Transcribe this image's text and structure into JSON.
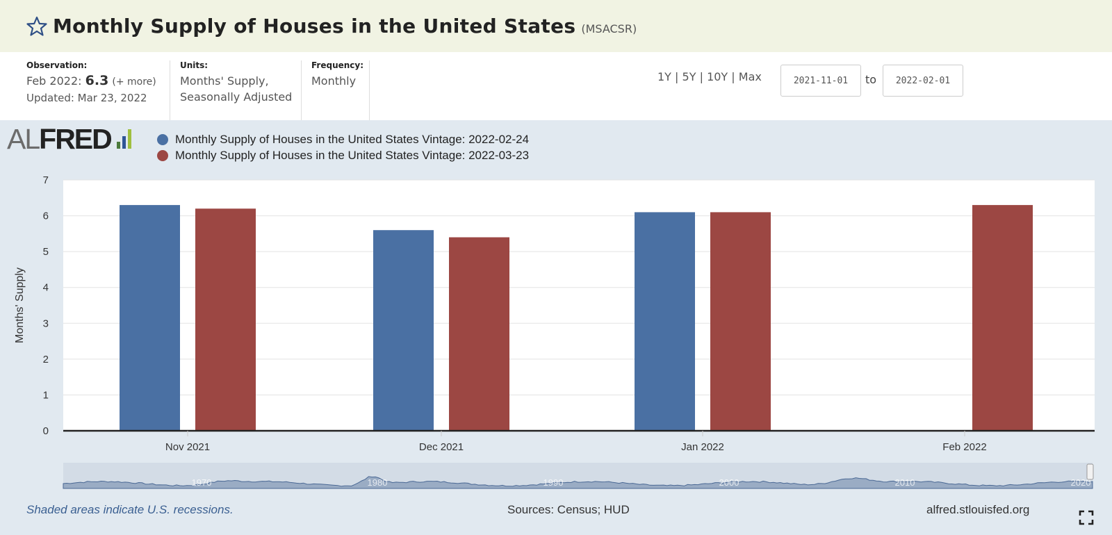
{
  "header": {
    "title": "Monthly Supply of Houses in the United States",
    "series_id": "(MSACSR)",
    "star_icon": "star-outline-icon"
  },
  "meta": {
    "observation": {
      "label": "Observation:",
      "period": "Feb 2022:",
      "value": "6.3",
      "more": "(+ more)",
      "updated": "Updated: Mar 23, 2022"
    },
    "units": {
      "label": "Units:",
      "line1": "Months' Supply,",
      "line2": "Seasonally Adjusted"
    },
    "frequency": {
      "label": "Frequency:",
      "value": "Monthly"
    }
  },
  "range": {
    "links": [
      "1Y",
      "5Y",
      "10Y",
      "Max"
    ],
    "separator": "|",
    "start_date": "2021-11-01",
    "to_label": "to",
    "end_date": "2022-02-01"
  },
  "logo": {
    "part1": "AL",
    "part2": "FRED",
    "bar_colors": [
      "#4b7a3c",
      "#2f5597",
      "#9fbf3f"
    ]
  },
  "footer": {
    "recession_note": "Shaded areas indicate U.S. recessions.",
    "sources": "Sources: Census; HUD",
    "site": "alfred.stlouisfed.org",
    "fullscreen_icon": "fullscreen-expand-icon"
  },
  "colors": {
    "series1": "#4a70a3",
    "series2": "#9c4743",
    "navigator_fill": "#9aacc4",
    "navigator_line": "#4a6894"
  },
  "chart_data": {
    "type": "bar",
    "categories": [
      "Nov 2021",
      "Dec 2021",
      "Jan 2022",
      "Feb 2022"
    ],
    "series": [
      {
        "name": "Monthly Supply of Houses in the United States Vintage: 2022-02-24",
        "values": [
          6.3,
          5.6,
          6.1,
          null
        ]
      },
      {
        "name": "Monthly Supply of Houses in the United States Vintage: 2022-03-23",
        "values": [
          6.2,
          5.4,
          6.1,
          6.3
        ]
      }
    ],
    "ylabel": "Months' Supply",
    "ylim": [
      0,
      7
    ],
    "yticks": [
      0,
      1,
      2,
      3,
      4,
      5,
      6,
      7
    ],
    "grid": true,
    "legend_position": "top-left",
    "navigator_labels": [
      "1970",
      "1980",
      "1990",
      "2000",
      "2010",
      "2020"
    ]
  }
}
